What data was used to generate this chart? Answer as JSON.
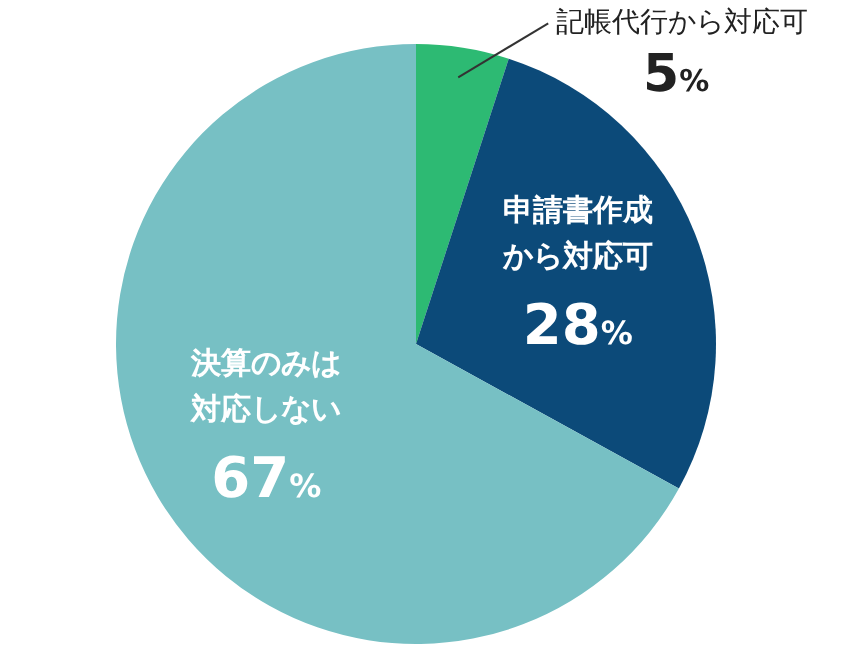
{
  "chart_data": {
    "type": "pie",
    "categories": [
      "記帳代行から対応可",
      "申請書作成から対応可",
      "決算のみは対応しない"
    ],
    "values": [
      5,
      28,
      67
    ],
    "colors": [
      "#2dba73",
      "#0c4a79",
      "#77c0c4"
    ],
    "value_labels": [
      "5%",
      "28%",
      "67%"
    ]
  }
}
